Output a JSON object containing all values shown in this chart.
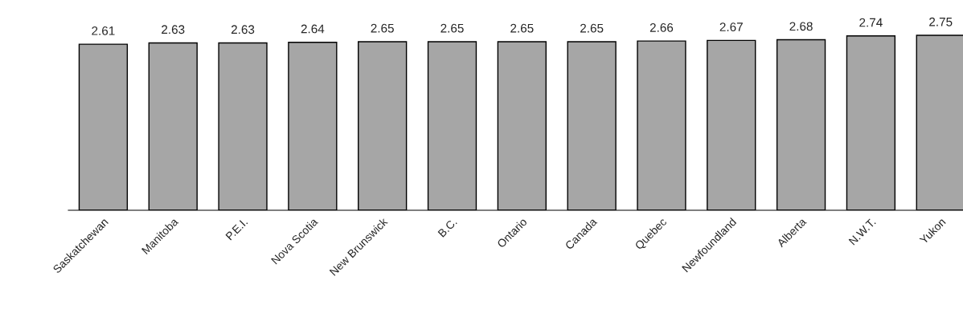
{
  "chart_data": {
    "type": "bar",
    "categories": [
      "Saskatchewan",
      "Manitoba",
      "P.E.I.",
      "Nova Scotia",
      "New Brunswick",
      "B.C.",
      "Ontario",
      "Canada",
      "Quebec",
      "Newfoundland",
      "Alberta",
      "N.W.T.",
      "Yukon"
    ],
    "values": [
      2.61,
      2.63,
      2.63,
      2.64,
      2.65,
      2.65,
      2.65,
      2.65,
      2.66,
      2.67,
      2.68,
      2.74,
      2.75
    ],
    "color": "#a6a6a6",
    "data_labels": true,
    "grid": false,
    "legend": false
  }
}
